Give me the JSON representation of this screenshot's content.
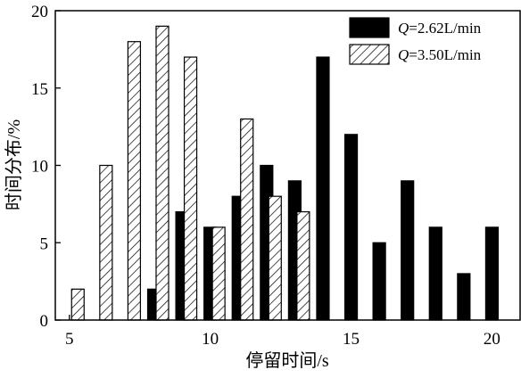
{
  "chart_data": {
    "type": "bar",
    "xlabel": "停留时间/s",
    "ylabel": "时间分布/%",
    "xlim": [
      4.5,
      21.0
    ],
    "ylim": [
      0,
      20
    ],
    "xticks": [
      5,
      10,
      15,
      20
    ],
    "yticks": [
      0,
      5,
      10,
      15,
      20
    ],
    "legend_position": "top-right",
    "series": [
      {
        "name_var": "Q",
        "name_rest": "=2.62L/min",
        "fill": "solid",
        "color": "#000000",
        "points": [
          {
            "x": 8,
            "y": 2
          },
          {
            "x": 9,
            "y": 7
          },
          {
            "x": 10,
            "y": 6
          },
          {
            "x": 11,
            "y": 8
          },
          {
            "x": 12,
            "y": 10
          },
          {
            "x": 13,
            "y": 9
          },
          {
            "x": 14,
            "y": 17
          },
          {
            "x": 15,
            "y": 12
          },
          {
            "x": 16,
            "y": 5
          },
          {
            "x": 17,
            "y": 9
          },
          {
            "x": 18,
            "y": 6
          },
          {
            "x": 19,
            "y": 3
          },
          {
            "x": 20,
            "y": 6
          }
        ]
      },
      {
        "name_var": "Q",
        "name_rest": "=3.50L/min",
        "fill": "hatched",
        "color": "#000000",
        "points": [
          {
            "x": 5.3,
            "y": 2
          },
          {
            "x": 6.3,
            "y": 10
          },
          {
            "x": 7.3,
            "y": 18
          },
          {
            "x": 8.3,
            "y": 19
          },
          {
            "x": 9.3,
            "y": 17
          },
          {
            "x": 10.3,
            "y": 6
          },
          {
            "x": 11.3,
            "y": 13
          },
          {
            "x": 12.3,
            "y": 8
          },
          {
            "x": 13.3,
            "y": 7
          }
        ]
      }
    ]
  }
}
